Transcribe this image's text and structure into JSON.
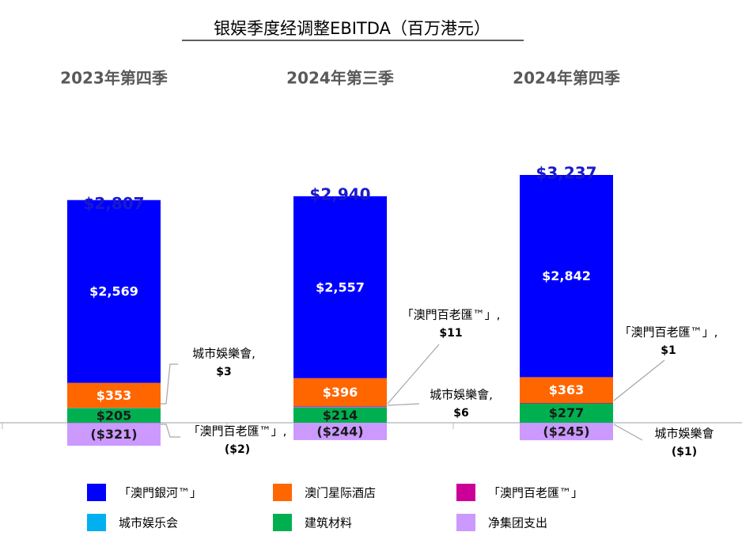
{
  "chart_data": {
    "type": "bar",
    "stacked": true,
    "title": "银娱季度经调整EBITDA（百万港元）",
    "categories": [
      "2023年第四季",
      "2024年第三季",
      "2024年第四季"
    ],
    "series": [
      {
        "name": "「澳門銀河™」",
        "color": "#0000ff",
        "values": [
          2569,
          2557,
          2842
        ],
        "value_labels": [
          "$2,569",
          "$2,557",
          "$2,842"
        ]
      },
      {
        "name": "澳门星际酒店",
        "color": "#ff6600",
        "values": [
          353,
          396,
          363
        ],
        "value_labels": [
          "$353",
          "$396",
          "$363"
        ]
      },
      {
        "name": "「澳門百老匯™」",
        "color": "#cc0099",
        "values": [
          -2,
          11,
          1
        ],
        "value_labels": [
          "($2)",
          "$11",
          "$1"
        ],
        "callout_labels": [
          "「澳門百老匯™」,",
          "「澳門百老匯™」,",
          "「澳門百老匯™」,"
        ]
      },
      {
        "name": "城市娱乐会",
        "color": "#00b0f0",
        "values": [
          3,
          6,
          -1
        ],
        "value_labels": [
          "$3",
          "$6",
          "($1)"
        ],
        "callout_labels": [
          "城市娛樂會,",
          "城市娛樂會,",
          "城市娛樂會"
        ]
      },
      {
        "name": "建筑材料",
        "color": "#00b050",
        "values": [
          205,
          214,
          277
        ],
        "value_labels": [
          "$205",
          "$214",
          "$277"
        ]
      },
      {
        "name": "净集团支出",
        "color": "#cc99ff",
        "values": [
          -321,
          -244,
          -245
        ],
        "value_labels": [
          "($321)",
          "($244)",
          "($245)"
        ]
      }
    ],
    "totals": [
      2807,
      2940,
      3237
    ],
    "total_labels": [
      "$2,807",
      "$2,940",
      "$3,237"
    ]
  }
}
